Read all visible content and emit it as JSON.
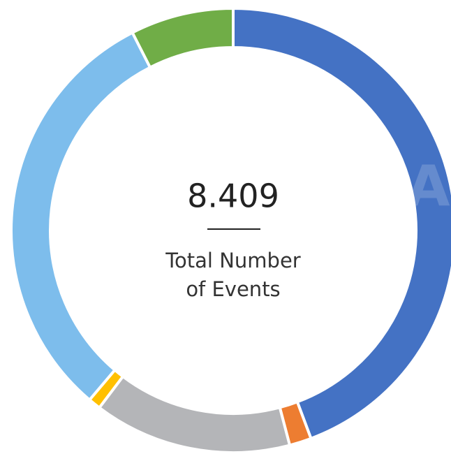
{
  "chart_data": {
    "type": "donut",
    "values": [
      44.3,
      1.6,
      14.4,
      0.9,
      31.3,
      7.5
    ],
    "colors": [
      "#4472c4",
      "#ed7d31",
      "#b4b5b8",
      "#ffc000",
      "#7dbdec",
      "#70ad47"
    ],
    "center_value": "8.409",
    "center_label": [
      "Total Number",
      "of Events"
    ],
    "watermark": "ICCA"
  }
}
